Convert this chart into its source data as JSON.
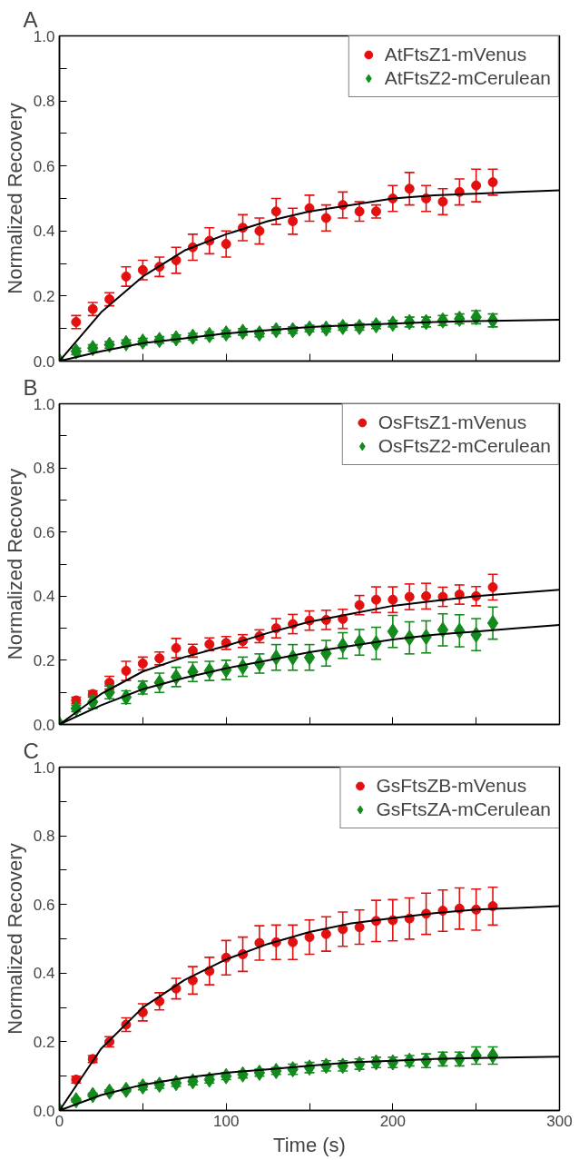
{
  "chart_data": [
    {
      "type": "scatter",
      "title": "A",
      "ylabel": "Normalized Recovery",
      "x": [
        0,
        10,
        20,
        30,
        40,
        50,
        60,
        70,
        80,
        90,
        100,
        110,
        120,
        130,
        140,
        150,
        160,
        170,
        180,
        190,
        200,
        210,
        220,
        230,
        240,
        250,
        260
      ],
      "xlim": [
        0,
        300
      ],
      "ylim": [
        0,
        1.0
      ],
      "xticks": [
        0,
        {
          "value": 50,
          "label": null
        },
        100,
        {
          "value": 150,
          "label": null
        },
        200,
        {
          "value": 250,
          "label": null
        },
        300
      ],
      "yticks": [
        {
          "value": 0,
          "label": "0.0"
        },
        {
          "value": 0.1,
          "label": null
        },
        0.2,
        {
          "value": 0.3,
          "label": null
        },
        0.4,
        {
          "value": 0.5,
          "label": null
        },
        0.6,
        {
          "value": 0.7,
          "label": null
        },
        0.8,
        {
          "value": 0.9,
          "label": null
        },
        {
          "value": 1.0,
          "label": "1.0"
        }
      ],
      "tick_labels": "y",
      "legend": "top right",
      "series": [
        {
          "name": "AtFtsZ1-mVenus",
          "color": "#e31010",
          "marker": "circle",
          "values": [
            null,
            0.12,
            0.16,
            0.19,
            0.26,
            0.28,
            0.29,
            0.31,
            0.35,
            0.37,
            0.36,
            0.41,
            0.4,
            0.46,
            0.43,
            0.47,
            0.44,
            0.48,
            0.46,
            0.46,
            0.5,
            0.53,
            0.5,
            0.49,
            0.52,
            0.54,
            0.55
          ],
          "errors": [
            null,
            0.02,
            0.02,
            0.02,
            0.03,
            0.03,
            0.03,
            0.04,
            0.04,
            0.04,
            0.04,
            0.04,
            0.04,
            0.04,
            0.04,
            0.04,
            0.04,
            0.04,
            0.03,
            0.02,
            0.04,
            0.05,
            0.04,
            0.04,
            0.04,
            0.05,
            0.04
          ]
        },
        {
          "name": "AtFtsZ2-mCerulean",
          "color": "#138a1c",
          "marker": "diamond",
          "values": [
            0,
            0.03,
            0.04,
            0.05,
            0.055,
            0.06,
            0.065,
            0.07,
            0.075,
            0.08,
            0.085,
            0.09,
            0.085,
            0.095,
            0.095,
            0.1,
            0.1,
            0.105,
            0.105,
            0.11,
            0.115,
            0.12,
            0.12,
            0.125,
            0.13,
            0.135,
            0.125
          ],
          "errors": [
            null,
            0.01,
            0.01,
            0.01,
            0.01,
            0.01,
            0.01,
            0.01,
            0.01,
            0.01,
            0.01,
            0.01,
            0.01,
            0.01,
            0.01,
            0.01,
            0.01,
            0.01,
            0.01,
            0.01,
            0.01,
            0.015,
            0.015,
            0.015,
            0.015,
            0.02,
            0.02
          ]
        },
        {
          "type": "line",
          "color": "#000000",
          "x": [
            0,
            25,
            50,
            75,
            100,
            125,
            150,
            175,
            200,
            225,
            250,
            275,
            300
          ],
          "values": [
            0,
            0.15,
            0.26,
            0.34,
            0.39,
            0.43,
            0.46,
            0.48,
            0.5,
            0.51,
            0.515,
            0.52,
            0.525
          ]
        },
        {
          "type": "line",
          "color": "#000000",
          "x": [
            0,
            25,
            50,
            75,
            100,
            125,
            150,
            175,
            200,
            225,
            250,
            275,
            300
          ],
          "values": [
            0,
            0.03,
            0.055,
            0.07,
            0.085,
            0.095,
            0.105,
            0.11,
            0.115,
            0.12,
            0.123,
            0.125,
            0.127
          ]
        }
      ]
    },
    {
      "type": "scatter",
      "title": "B",
      "ylabel": "Normalized Recovery",
      "x": [
        0,
        10,
        20,
        30,
        40,
        50,
        60,
        70,
        80,
        90,
        100,
        110,
        120,
        130,
        140,
        150,
        160,
        170,
        180,
        190,
        200,
        210,
        220,
        230,
        240,
        250,
        260
      ],
      "xlim": [
        0,
        300
      ],
      "ylim": [
        0,
        1.0
      ],
      "xticks": [
        0,
        {
          "value": 50,
          "label": null
        },
        100,
        {
          "value": 150,
          "label": null
        },
        200,
        {
          "value": 250,
          "label": null
        },
        300
      ],
      "yticks": [
        {
          "value": 0,
          "label": "0.0"
        },
        {
          "value": 0.1,
          "label": null
        },
        0.2,
        {
          "value": 0.3,
          "label": null
        },
        0.4,
        {
          "value": 0.5,
          "label": null
        },
        0.6,
        {
          "value": 0.7,
          "label": null
        },
        0.8,
        {
          "value": 0.9,
          "label": null
        },
        {
          "value": 1.0,
          "label": "1.0"
        }
      ],
      "tick_labels": "y",
      "legend": "top right",
      "series": [
        {
          "name": "OsFtsZ1-mVenus",
          "color": "#e31010",
          "marker": "circle",
          "values": [
            null,
            0.075,
            0.095,
            0.13,
            0.167,
            0.19,
            0.206,
            0.238,
            0.23,
            0.25,
            0.254,
            0.26,
            0.275,
            0.3,
            0.313,
            0.324,
            0.326,
            0.329,
            0.372,
            0.389,
            0.389,
            0.398,
            0.4,
            0.398,
            0.405,
            0.4,
            0.428
          ],
          "errors": [
            null,
            0.01,
            0.01,
            0.02,
            0.03,
            0.02,
            0.02,
            0.03,
            0.02,
            0.02,
            0.02,
            0.02,
            0.02,
            0.03,
            0.03,
            0.03,
            0.03,
            0.03,
            0.03,
            0.04,
            0.04,
            0.04,
            0.04,
            0.03,
            0.03,
            0.03,
            0.04
          ]
        },
        {
          "name": "OsFtsZ2-mCerulean",
          "color": "#138a1c",
          "marker": "diamond",
          "values": [
            0,
            0.05,
            0.07,
            0.1,
            0.085,
            0.115,
            0.13,
            0.148,
            0.164,
            0.167,
            0.17,
            0.18,
            0.19,
            0.209,
            0.209,
            0.209,
            0.222,
            0.246,
            0.256,
            0.253,
            0.29,
            0.27,
            0.273,
            0.295,
            0.292,
            0.28,
            0.316
          ],
          "errors": [
            null,
            0.01,
            0.02,
            0.02,
            0.02,
            0.02,
            0.03,
            0.03,
            0.03,
            0.03,
            0.03,
            0.03,
            0.03,
            0.04,
            0.04,
            0.04,
            0.04,
            0.04,
            0.04,
            0.05,
            0.05,
            0.05,
            0.05,
            0.05,
            0.05,
            0.05,
            0.05
          ]
        },
        {
          "type": "line",
          "color": "#000000",
          "x": [
            0,
            25,
            50,
            75,
            100,
            125,
            150,
            175,
            200,
            225,
            250,
            275,
            300
          ],
          "values": [
            0,
            0.095,
            0.165,
            0.21,
            0.245,
            0.285,
            0.32,
            0.345,
            0.37,
            0.385,
            0.4,
            0.41,
            0.42
          ]
        },
        {
          "type": "line",
          "color": "#000000",
          "x": [
            0,
            25,
            50,
            75,
            100,
            125,
            150,
            175,
            200,
            225,
            250,
            275,
            300
          ],
          "values": [
            0,
            0.06,
            0.11,
            0.145,
            0.175,
            0.2,
            0.225,
            0.245,
            0.265,
            0.28,
            0.29,
            0.3,
            0.31
          ]
        }
      ]
    },
    {
      "type": "scatter",
      "title": "C",
      "xlabel": "Time (s)",
      "ylabel": "Normalized Recovery",
      "x": [
        0,
        10,
        20,
        30,
        40,
        50,
        60,
        70,
        80,
        90,
        100,
        110,
        120,
        130,
        140,
        150,
        160,
        170,
        180,
        190,
        200,
        210,
        220,
        230,
        240,
        250,
        260
      ],
      "xlim": [
        0,
        300
      ],
      "ylim": [
        0,
        1.0
      ],
      "xticks": [
        0,
        {
          "value": 50,
          "label": null
        },
        100,
        {
          "value": 150,
          "label": null
        },
        200,
        {
          "value": 250,
          "label": null
        },
        300
      ],
      "yticks": [
        {
          "value": 0,
          "label": "0.0"
        },
        {
          "value": 0.1,
          "label": null
        },
        0.2,
        {
          "value": 0.3,
          "label": null
        },
        0.4,
        {
          "value": 0.5,
          "label": null
        },
        0.6,
        {
          "value": 0.7,
          "label": null
        },
        0.8,
        {
          "value": 0.9,
          "label": null
        },
        {
          "value": 1.0,
          "label": "1.0"
        }
      ],
      "legend": "top right",
      "series": [
        {
          "name": "GsFtsZB-mVenus",
          "color": "#e31010",
          "marker": "circle",
          "values": [
            null,
            0.09,
            0.15,
            0.2,
            0.25,
            0.286,
            0.318,
            0.355,
            0.379,
            0.406,
            0.445,
            0.455,
            0.488,
            0.49,
            0.49,
            0.505,
            0.514,
            0.528,
            0.534,
            0.552,
            0.554,
            0.559,
            0.573,
            0.582,
            0.588,
            0.585,
            0.595
          ],
          "errors": [
            null,
            0.01,
            0.01,
            0.015,
            0.02,
            0.025,
            0.025,
            0.03,
            0.04,
            0.04,
            0.05,
            0.05,
            0.05,
            0.05,
            0.05,
            0.05,
            0.05,
            0.05,
            0.05,
            0.06,
            0.06,
            0.06,
            0.06,
            0.06,
            0.06,
            0.06,
            0.055
          ]
        },
        {
          "name": "GsFtsZA-mCerulean",
          "color": "#138a1c",
          "marker": "diamond",
          "values": [
            0,
            0.03,
            0.045,
            0.055,
            0.06,
            0.07,
            0.075,
            0.08,
            0.085,
            0.09,
            0.1,
            0.105,
            0.11,
            0.115,
            0.12,
            0.125,
            0.13,
            0.13,
            0.135,
            0.14,
            0.14,
            0.145,
            0.145,
            0.15,
            0.15,
            0.16,
            0.16
          ],
          "errors": [
            null,
            0.005,
            0.005,
            0.005,
            0.005,
            0.01,
            0.01,
            0.01,
            0.01,
            0.01,
            0.01,
            0.01,
            0.01,
            0.01,
            0.015,
            0.015,
            0.015,
            0.015,
            0.015,
            0.015,
            0.015,
            0.015,
            0.02,
            0.02,
            0.02,
            0.025,
            0.025
          ]
        },
        {
          "type": "line",
          "color": "#000000",
          "x": [
            0,
            25,
            50,
            75,
            100,
            125,
            150,
            175,
            200,
            225,
            250,
            275,
            300
          ],
          "values": [
            0,
            0.18,
            0.3,
            0.38,
            0.44,
            0.485,
            0.52,
            0.545,
            0.56,
            0.575,
            0.585,
            0.59,
            0.595
          ]
        },
        {
          "type": "line",
          "color": "#000000",
          "x": [
            0,
            25,
            50,
            75,
            100,
            125,
            150,
            175,
            200,
            225,
            250,
            275,
            300
          ],
          "values": [
            0,
            0.045,
            0.075,
            0.095,
            0.11,
            0.12,
            0.13,
            0.14,
            0.145,
            0.15,
            0.153,
            0.155,
            0.157
          ]
        }
      ]
    }
  ]
}
